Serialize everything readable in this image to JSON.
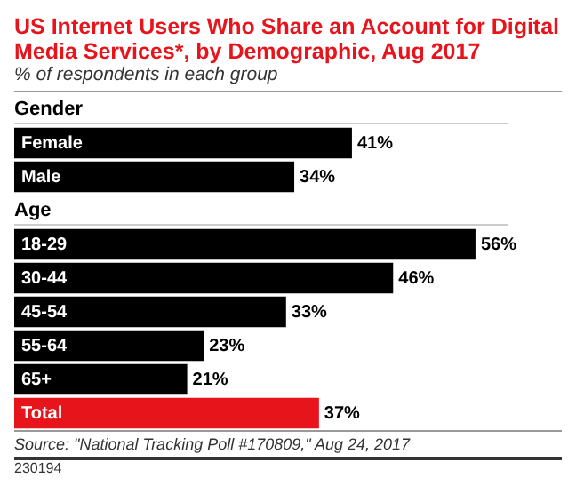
{
  "chart_data": {
    "type": "bar",
    "orientation": "horizontal",
    "title": "US Internet Users Who Share an Account for Digital Media Services*, by Demographic, Aug 2017",
    "subtitle": "% of respondents in each group",
    "categories": [
      "Gender",
      "Female",
      "Male",
      "Age",
      "18-29",
      "30-44",
      "45-54",
      "55-64",
      "65+",
      "Total"
    ],
    "values": [
      null,
      41,
      34,
      null,
      56,
      46,
      33,
      23,
      21,
      37
    ],
    "colors": [
      "#000000",
      "#000000",
      "#000000",
      "#000000",
      "#000000",
      "#000000",
      "#000000",
      "#000000",
      "#000000",
      "#e8141c"
    ],
    "value_labels": [
      null,
      "41%",
      "34%",
      null,
      "56%",
      "46%",
      "33%",
      "23%",
      "21%",
      "37%"
    ],
    "annotations": [
      "Source: \"National Tracking Poll #170809,\" Aug 24, 2017",
      "230194"
    ]
  }
}
